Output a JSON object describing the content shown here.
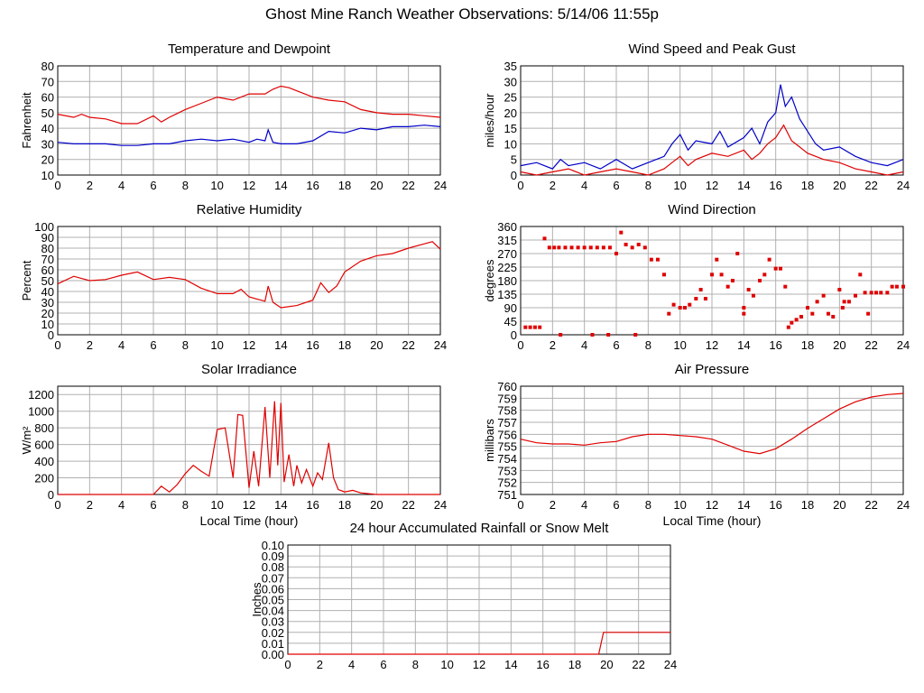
{
  "page": {
    "title": "Ghost Mine Ranch Weather Observations: 5/14/06 11:55p"
  },
  "colors": {
    "red": "#e00000",
    "blue": "#0000c8",
    "grid": "#b0b0b0",
    "frame": "#000000"
  },
  "chart_data": [
    {
      "id": "temp",
      "type": "line",
      "title": "Temperature and Dewpoint",
      "ylabel": "Fahrenheit",
      "xlabel": "",
      "xlim": [
        0,
        24
      ],
      "ylim": [
        10,
        80
      ],
      "xticks": [
        0,
        2,
        4,
        6,
        8,
        10,
        12,
        14,
        16,
        18,
        20,
        22,
        24
      ],
      "yticks": [
        10,
        20,
        30,
        40,
        50,
        60,
        70,
        80
      ],
      "series": [
        {
          "color": "#e00000",
          "x": [
            0,
            1,
            1.5,
            2,
            3,
            4,
            5,
            6,
            6.5,
            7,
            8,
            9,
            10,
            11,
            12,
            13,
            13.5,
            14,
            14.5,
            15,
            16,
            17,
            18,
            19,
            20,
            21,
            22,
            23,
            24
          ],
          "y": [
            49,
            47,
            49,
            47,
            46,
            43,
            43,
            48,
            44,
            47,
            52,
            56,
            60,
            58,
            62,
            62,
            65,
            67,
            66,
            64,
            60,
            58,
            57,
            52,
            50,
            49,
            49,
            48,
            47
          ]
        },
        {
          "color": "#0000c8",
          "x": [
            0,
            1,
            2,
            3,
            4,
            5,
            6,
            7,
            8,
            9,
            10,
            11,
            12,
            12.5,
            13,
            13.2,
            13.5,
            14,
            15,
            16,
            17,
            18,
            19,
            20,
            21,
            22,
            23,
            24
          ],
          "y": [
            31,
            30,
            30,
            30,
            29,
            29,
            30,
            30,
            32,
            33,
            32,
            33,
            31,
            33,
            32,
            39,
            31,
            30,
            30,
            32,
            38,
            37,
            40,
            39,
            41,
            41,
            42,
            41
          ]
        }
      ]
    },
    {
      "id": "wind",
      "type": "line",
      "title": "Wind Speed and Peak Gust",
      "ylabel": "miles/hour",
      "xlabel": "",
      "xlim": [
        0,
        24
      ],
      "ylim": [
        0,
        35
      ],
      "xticks": [
        0,
        2,
        4,
        6,
        8,
        10,
        12,
        14,
        16,
        18,
        20,
        22,
        24
      ],
      "yticks": [
        0,
        5,
        10,
        15,
        20,
        25,
        30,
        35
      ],
      "series": [
        {
          "color": "#0000c8",
          "x": [
            0,
            1,
            2,
            2.5,
            3,
            4,
            5,
            6,
            7,
            8,
            9,
            9.5,
            10,
            10.5,
            11,
            12,
            12.5,
            13,
            14,
            14.5,
            15,
            15.5,
            16,
            16.3,
            16.6,
            17,
            17.5,
            18,
            18.5,
            19,
            20,
            21,
            22,
            23,
            24
          ],
          "y": [
            3,
            4,
            2,
            5,
            3,
            4,
            2,
            5,
            2,
            4,
            6,
            10,
            13,
            8,
            11,
            10,
            14,
            9,
            12,
            15,
            10,
            17,
            20,
            29,
            22,
            25,
            18,
            14,
            10,
            8,
            9,
            6,
            4,
            3,
            5
          ]
        },
        {
          "color": "#e00000",
          "x": [
            0,
            1,
            2,
            3,
            4,
            5,
            6,
            7,
            8,
            9,
            9.5,
            10,
            10.5,
            11,
            12,
            13,
            14,
            14.5,
            15,
            15.5,
            16,
            16.5,
            17,
            17.5,
            18,
            19,
            20,
            21,
            22,
            23,
            24
          ],
          "y": [
            1,
            0,
            1,
            2,
            0,
            1,
            2,
            1,
            0,
            2,
            4,
            6,
            3,
            5,
            7,
            6,
            8,
            5,
            7,
            10,
            12,
            16,
            11,
            9,
            7,
            5,
            4,
            2,
            1,
            0,
            1
          ]
        }
      ]
    },
    {
      "id": "humidity",
      "type": "line",
      "title": "Relative Humidity",
      "ylabel": "Percent",
      "xlabel": "",
      "xlim": [
        0,
        24
      ],
      "ylim": [
        0,
        100
      ],
      "xticks": [
        0,
        2,
        4,
        6,
        8,
        10,
        12,
        14,
        16,
        18,
        20,
        22,
        24
      ],
      "yticks": [
        0,
        10,
        20,
        30,
        40,
        50,
        60,
        70,
        80,
        90,
        100
      ],
      "series": [
        {
          "color": "#e00000",
          "x": [
            0,
            1,
            2,
            3,
            4,
            5,
            6,
            7,
            8,
            9,
            10,
            11,
            11.5,
            12,
            12.5,
            13,
            13.2,
            13.5,
            14,
            15,
            16,
            16.5,
            17,
            17.5,
            18,
            19,
            20,
            21,
            22,
            23,
            23.5,
            24
          ],
          "y": [
            47,
            54,
            50,
            51,
            55,
            58,
            51,
            53,
            51,
            43,
            38,
            38,
            42,
            35,
            33,
            31,
            45,
            30,
            25,
            27,
            32,
            48,
            39,
            45,
            58,
            68,
            73,
            75,
            80,
            84,
            86,
            79
          ]
        }
      ]
    },
    {
      "id": "direction",
      "type": "scatter",
      "title": "Wind Direction",
      "ylabel": "degrees",
      "xlabel": "",
      "xlim": [
        0,
        24
      ],
      "ylim": [
        0,
        360
      ],
      "xticks": [
        0,
        2,
        4,
        6,
        8,
        10,
        12,
        14,
        16,
        18,
        20,
        22,
        24
      ],
      "yticks": [
        0,
        45,
        90,
        135,
        180,
        225,
        270,
        315,
        360
      ],
      "series": [
        {
          "color": "#e00000",
          "x": [
            0.3,
            0.6,
            0.9,
            1.2,
            1.5,
            1.8,
            2.1,
            2.4,
            2.8,
            3.2,
            3.6,
            4,
            4.4,
            4.8,
            5.2,
            5.6,
            6,
            6.3,
            6.6,
            7,
            7.4,
            7.8,
            8.2,
            8.6,
            9,
            9.3,
            9.6,
            10,
            10.3,
            10.6,
            11,
            11.3,
            11.6,
            12,
            12.3,
            12.6,
            13,
            13.3,
            13.6,
            14,
            14.3,
            14.6,
            15,
            15.3,
            15.6,
            16,
            16.3,
            16.6,
            17,
            17.3,
            17.6,
            18,
            18.3,
            18.6,
            19,
            19.3,
            19.6,
            20,
            20.3,
            20.6,
            21,
            21.3,
            21.6,
            22,
            22.3,
            22.6,
            23,
            23.3,
            23.6,
            24,
            2.5,
            4.5,
            5.5,
            7.2,
            14,
            20.2,
            21.8,
            16.8
          ],
          "y": [
            25,
            25,
            25,
            25,
            320,
            290,
            290,
            290,
            290,
            290,
            290,
            290,
            290,
            290,
            290,
            290,
            270,
            340,
            300,
            290,
            300,
            290,
            250,
            250,
            200,
            70,
            100,
            90,
            90,
            100,
            120,
            150,
            120,
            200,
            250,
            200,
            160,
            180,
            270,
            90,
            150,
            130,
            180,
            200,
            250,
            220,
            220,
            160,
            40,
            50,
            60,
            90,
            70,
            110,
            130,
            70,
            60,
            150,
            110,
            110,
            130,
            200,
            140,
            140,
            140,
            140,
            140,
            160,
            160,
            160,
            0,
            0,
            0,
            0,
            70,
            90,
            70,
            25
          ]
        }
      ]
    },
    {
      "id": "solar",
      "type": "line",
      "title": "Solar Irradiance",
      "ylabel": "W/m²",
      "xlabel": "Local Time (hour)",
      "xlim": [
        0,
        24
      ],
      "ylim": [
        0,
        1300
      ],
      "xticks": [
        0,
        2,
        4,
        6,
        8,
        10,
        12,
        14,
        16,
        18,
        20,
        22,
        24
      ],
      "yticks": [
        0,
        200,
        400,
        600,
        800,
        1000,
        1200
      ],
      "series": [
        {
          "color": "#e00000",
          "x": [
            0,
            6,
            6.5,
            7,
            7.5,
            8,
            8.5,
            9,
            9.5,
            10,
            10.5,
            11,
            11.3,
            11.6,
            12,
            12.3,
            12.6,
            13,
            13.3,
            13.6,
            13.8,
            14,
            14.2,
            14.5,
            14.8,
            15,
            15.3,
            15.6,
            16,
            16.3,
            16.6,
            17,
            17.3,
            17.6,
            18,
            18.5,
            19,
            19.5,
            20,
            24
          ],
          "y": [
            0,
            0,
            100,
            30,
            120,
            250,
            350,
            280,
            220,
            780,
            800,
            200,
            960,
            950,
            80,
            520,
            100,
            1050,
            200,
            1120,
            350,
            1100,
            150,
            480,
            100,
            350,
            140,
            300,
            100,
            260,
            180,
            620,
            200,
            60,
            30,
            50,
            20,
            10,
            0,
            0
          ]
        }
      ]
    },
    {
      "id": "pressure",
      "type": "line",
      "title": "Air Pressure",
      "ylabel": "millibars",
      "xlabel": "Local Time (hour)",
      "xlim": [
        0,
        24
      ],
      "ylim": [
        751,
        760
      ],
      "xticks": [
        0,
        2,
        4,
        6,
        8,
        10,
        12,
        14,
        16,
        18,
        20,
        22,
        24
      ],
      "yticks": [
        751,
        752,
        753,
        754,
        755,
        756,
        757,
        758,
        759,
        760
      ],
      "series": [
        {
          "color": "#e00000",
          "x": [
            0,
            1,
            2,
            3,
            4,
            5,
            6,
            7,
            8,
            9,
            10,
            11,
            12,
            13,
            14,
            15,
            16,
            17,
            18,
            19,
            20,
            21,
            22,
            23,
            24
          ],
          "y": [
            755.6,
            755.3,
            755.2,
            755.2,
            755.1,
            755.3,
            755.4,
            755.8,
            756,
            756,
            755.9,
            755.8,
            755.6,
            755.1,
            754.6,
            754.4,
            754.8,
            755.6,
            756.5,
            757.3,
            758.1,
            758.7,
            759.1,
            759.3,
            759.4
          ]
        }
      ]
    },
    {
      "id": "rain",
      "type": "line",
      "title": "24 hour Accumulated Rainfall or Snow Melt",
      "ylabel": "Inches",
      "xlabel": "",
      "xlim": [
        0,
        24
      ],
      "ylim": [
        0,
        0.1
      ],
      "xticks": [
        0,
        2,
        4,
        6,
        8,
        10,
        12,
        14,
        16,
        18,
        20,
        22,
        24
      ],
      "yticks": [
        0,
        0.01,
        0.02,
        0.03,
        0.04,
        0.05,
        0.06,
        0.07,
        0.08,
        0.09,
        0.1
      ],
      "ytick_labels": [
        "0.00",
        "0.01",
        "0.02",
        "0.03",
        "0.04",
        "0.05",
        "0.06",
        "0.07",
        "0.08",
        "0.09",
        "0.10"
      ],
      "series": [
        {
          "color": "#e00000",
          "x": [
            0,
            19.5,
            19.8,
            24
          ],
          "y": [
            0,
            0,
            0.02,
            0.02
          ]
        }
      ]
    }
  ]
}
